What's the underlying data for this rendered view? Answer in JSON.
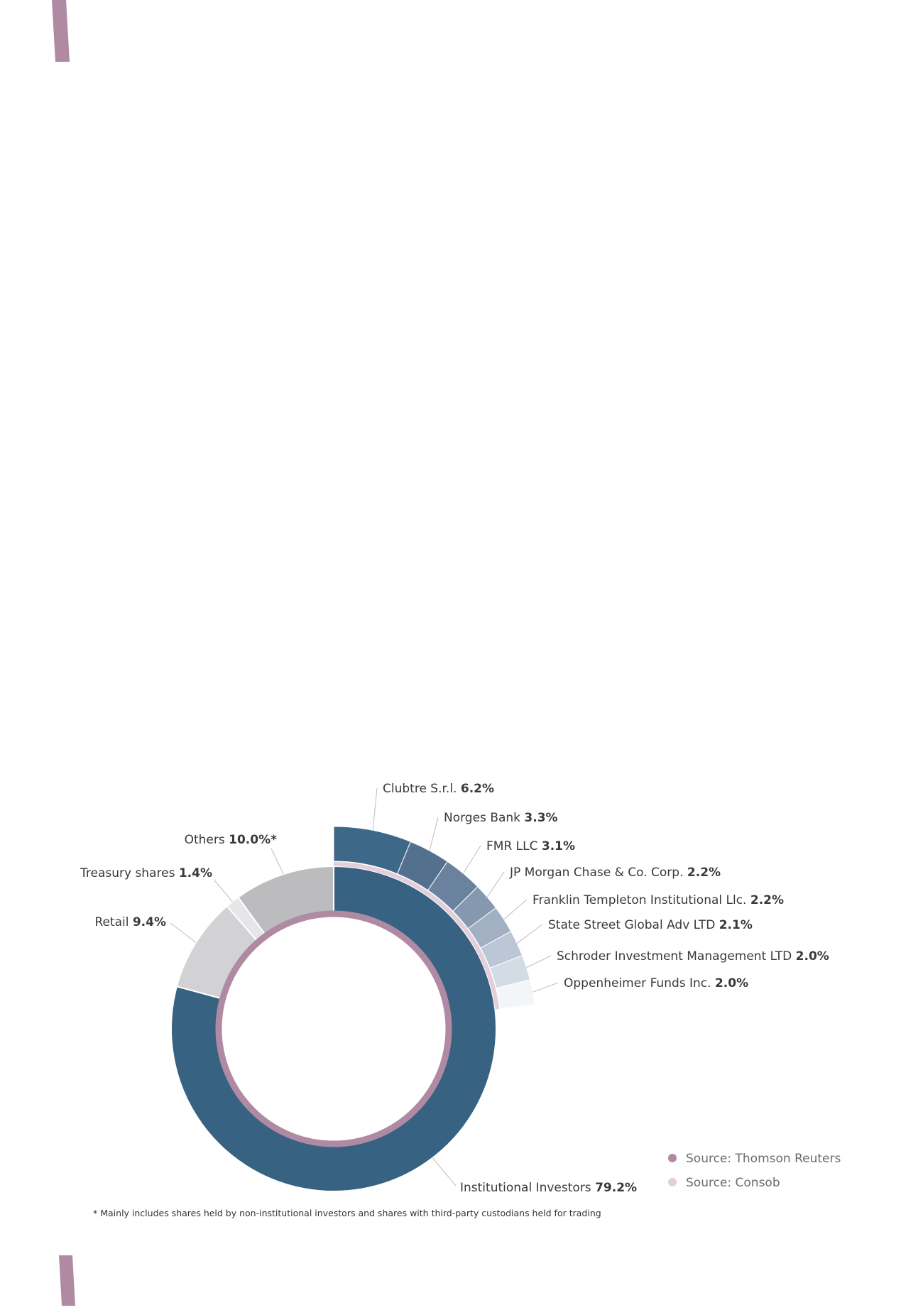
{
  "colors": {
    "accent_mauve": "#b08aa3",
    "consob_pink": "#e3cfdb",
    "institutional": "#376282",
    "retail": "#d2d2d4",
    "treasury": "#e6e6e8",
    "others": "#bcbcbe",
    "label_text": "#3a3a3a",
    "leader_line": "#bdbdbd"
  },
  "chart_data": {
    "type": "pie",
    "inner_ring": {
      "source": "Source: Thomson Reuters",
      "segments": [
        {
          "name": "Institutional Investors",
          "value_text": "79.2%",
          "value": 79.2,
          "color": "#376282"
        },
        {
          "name": "Retail",
          "value_text": "9.4%",
          "value": 9.4,
          "color": "#d2d2d4"
        },
        {
          "name": "Treasury shares",
          "value_text": "1.4%",
          "value": 1.4,
          "color": "#e6e6e8"
        },
        {
          "name": "Others",
          "value_text": "10.0%*",
          "value": 10.0,
          "color": "#bcbcbe"
        }
      ]
    },
    "outer_ring": {
      "source": "Source: Consob",
      "segments": [
        {
          "name": "Clubtre S.r.l.",
          "value_text": "6.2%",
          "value": 6.2,
          "color": "#3e6887"
        },
        {
          "name": "Norges Bank",
          "value_text": "3.3%",
          "value": 3.3,
          "color": "#53718e"
        },
        {
          "name": "FMR LLC",
          "value_text": "3.1%",
          "value": 3.1,
          "color": "#6a829d"
        },
        {
          "name": "JP Morgan Chase & Co. Corp.",
          "value_text": "2.2%",
          "value": 2.2,
          "color": "#8598b0"
        },
        {
          "name": "Franklin Templeton Institutional Llc.",
          "value_text": "2.2%",
          "value": 2.2,
          "color": "#a1b0c3"
        },
        {
          "name": "State Street Global Adv LTD",
          "value_text": "2.1%",
          "value": 2.1,
          "color": "#bcc7d5"
        },
        {
          "name": "Schroder Investment Management LTD",
          "value_text": "2.0%",
          "value": 2.0,
          "color": "#d3dbe5"
        },
        {
          "name": "Oppenheimer Funds Inc.",
          "value_text": "2.0%",
          "value": 2.0,
          "color": "#f3f5f7"
        }
      ]
    },
    "legend": [
      {
        "label": "Source: Thomson Reuters",
        "color": "#b08aa3"
      },
      {
        "label": "Source: Consob",
        "color": "#e3cfdb"
      }
    ],
    "footnote": "* Mainly includes shares held by non-institutional investors and shares with third-party custodians held for trading"
  }
}
